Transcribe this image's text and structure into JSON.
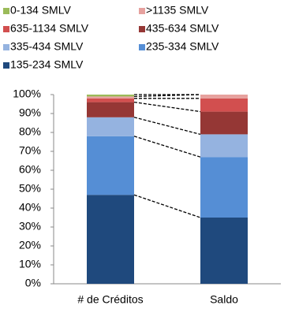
{
  "chart_data": {
    "type": "stacked_bar",
    "categories": [
      "# de Créditos",
      "Saldo"
    ],
    "series": [
      {
        "name": "0-134  SMLV",
        "color": "#9bbb59",
        "values": [
          1,
          0
        ]
      },
      {
        "name": ">1135 SMLV",
        "color": "#e6a19e",
        "values": [
          1,
          2
        ]
      },
      {
        "name": "635-1134  SMLV",
        "color": "#d24f4f",
        "values": [
          2,
          7
        ]
      },
      {
        "name": "435-634 SMLV",
        "color": "#953735",
        "values": [
          8,
          12
        ]
      },
      {
        "name": "335-434  SMLV",
        "color": "#95b3e0",
        "values": [
          10,
          12
        ]
      },
      {
        "name": "235-334  SMLV",
        "color": "#558ed5",
        "values": [
          31,
          32
        ]
      },
      {
        "name": "135-234  SMLV",
        "color": "#1f497d",
        "values": [
          47,
          35
        ]
      }
    ],
    "ylim": [
      0,
      100
    ],
    "yticks": [
      {
        "value": 0,
        "label": "0%"
      },
      {
        "value": 10,
        "label": "10%"
      },
      {
        "value": 20,
        "label": "20%"
      },
      {
        "value": 30,
        "label": "30%"
      },
      {
        "value": 40,
        "label": "40%"
      },
      {
        "value": 50,
        "label": "50%"
      },
      {
        "value": 60,
        "label": "60%"
      },
      {
        "value": 70,
        "label": "70%"
      },
      {
        "value": 80,
        "label": "80%"
      },
      {
        "value": 90,
        "label": "90%"
      },
      {
        "value": 100,
        "label": "100%"
      }
    ],
    "connectors": true
  }
}
